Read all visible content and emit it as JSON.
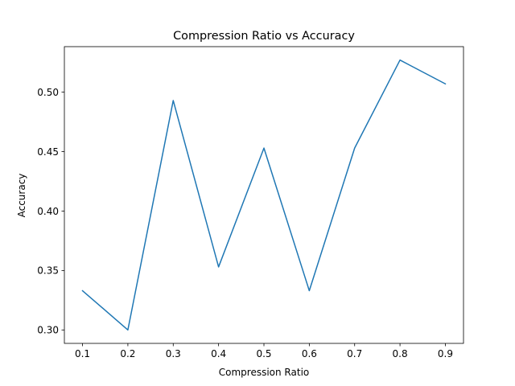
{
  "chart_data": {
    "type": "line",
    "title": "Compression Ratio vs Accuracy",
    "xlabel": "Compression Ratio",
    "ylabel": "Accuracy",
    "x": [
      0.1,
      0.2,
      0.3,
      0.4,
      0.5,
      0.6,
      0.7,
      0.8,
      0.9
    ],
    "series": [
      {
        "values": [
          0.333,
          0.3,
          0.493,
          0.353,
          0.453,
          0.333,
          0.453,
          0.527,
          0.507
        ],
        "color": "#1f77b4"
      }
    ],
    "xlim": [
      0.06,
      0.94
    ],
    "ylim": [
      0.2887,
      0.5383
    ],
    "xticks": [
      "0.1",
      "0.2",
      "0.3",
      "0.4",
      "0.5",
      "0.6",
      "0.7",
      "0.8",
      "0.9"
    ],
    "yticks": [
      "0.30",
      "0.35",
      "0.40",
      "0.45",
      "0.50"
    ],
    "grid": false,
    "legend": "none"
  }
}
